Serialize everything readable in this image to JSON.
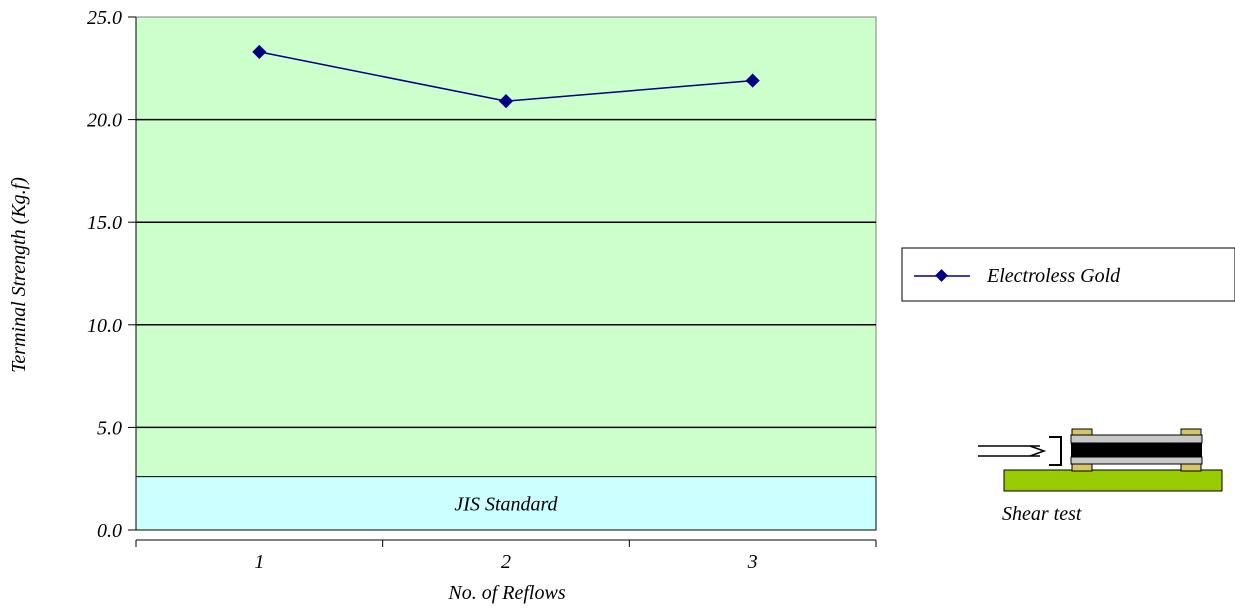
{
  "chart_data": {
    "type": "line",
    "xlabel": "No. of Reflows",
    "ylabel": "Terminal Strength (Kg.f)",
    "categories": [
      "1",
      "2",
      "3"
    ],
    "ylim": [
      0,
      25
    ],
    "yticks": [
      "0.0",
      "5.0",
      "10.0",
      "15.0",
      "20.0",
      "25.0"
    ],
    "ytick_values": [
      0,
      5,
      10,
      15,
      20,
      25
    ],
    "grid": true,
    "series": [
      {
        "name": "Electroless Gold",
        "values": [
          23.3,
          20.9,
          21.9
        ],
        "color": "#000080",
        "marker": "diamond"
      }
    ],
    "reference_band": {
      "label": "JIS Standard",
      "value": 2.6,
      "color": "#ccffff"
    },
    "plot_background": "#ccffcc",
    "legend": {
      "position": "right",
      "entries": [
        "Electroless Gold"
      ]
    },
    "annotation": {
      "label": "Shear test"
    }
  }
}
